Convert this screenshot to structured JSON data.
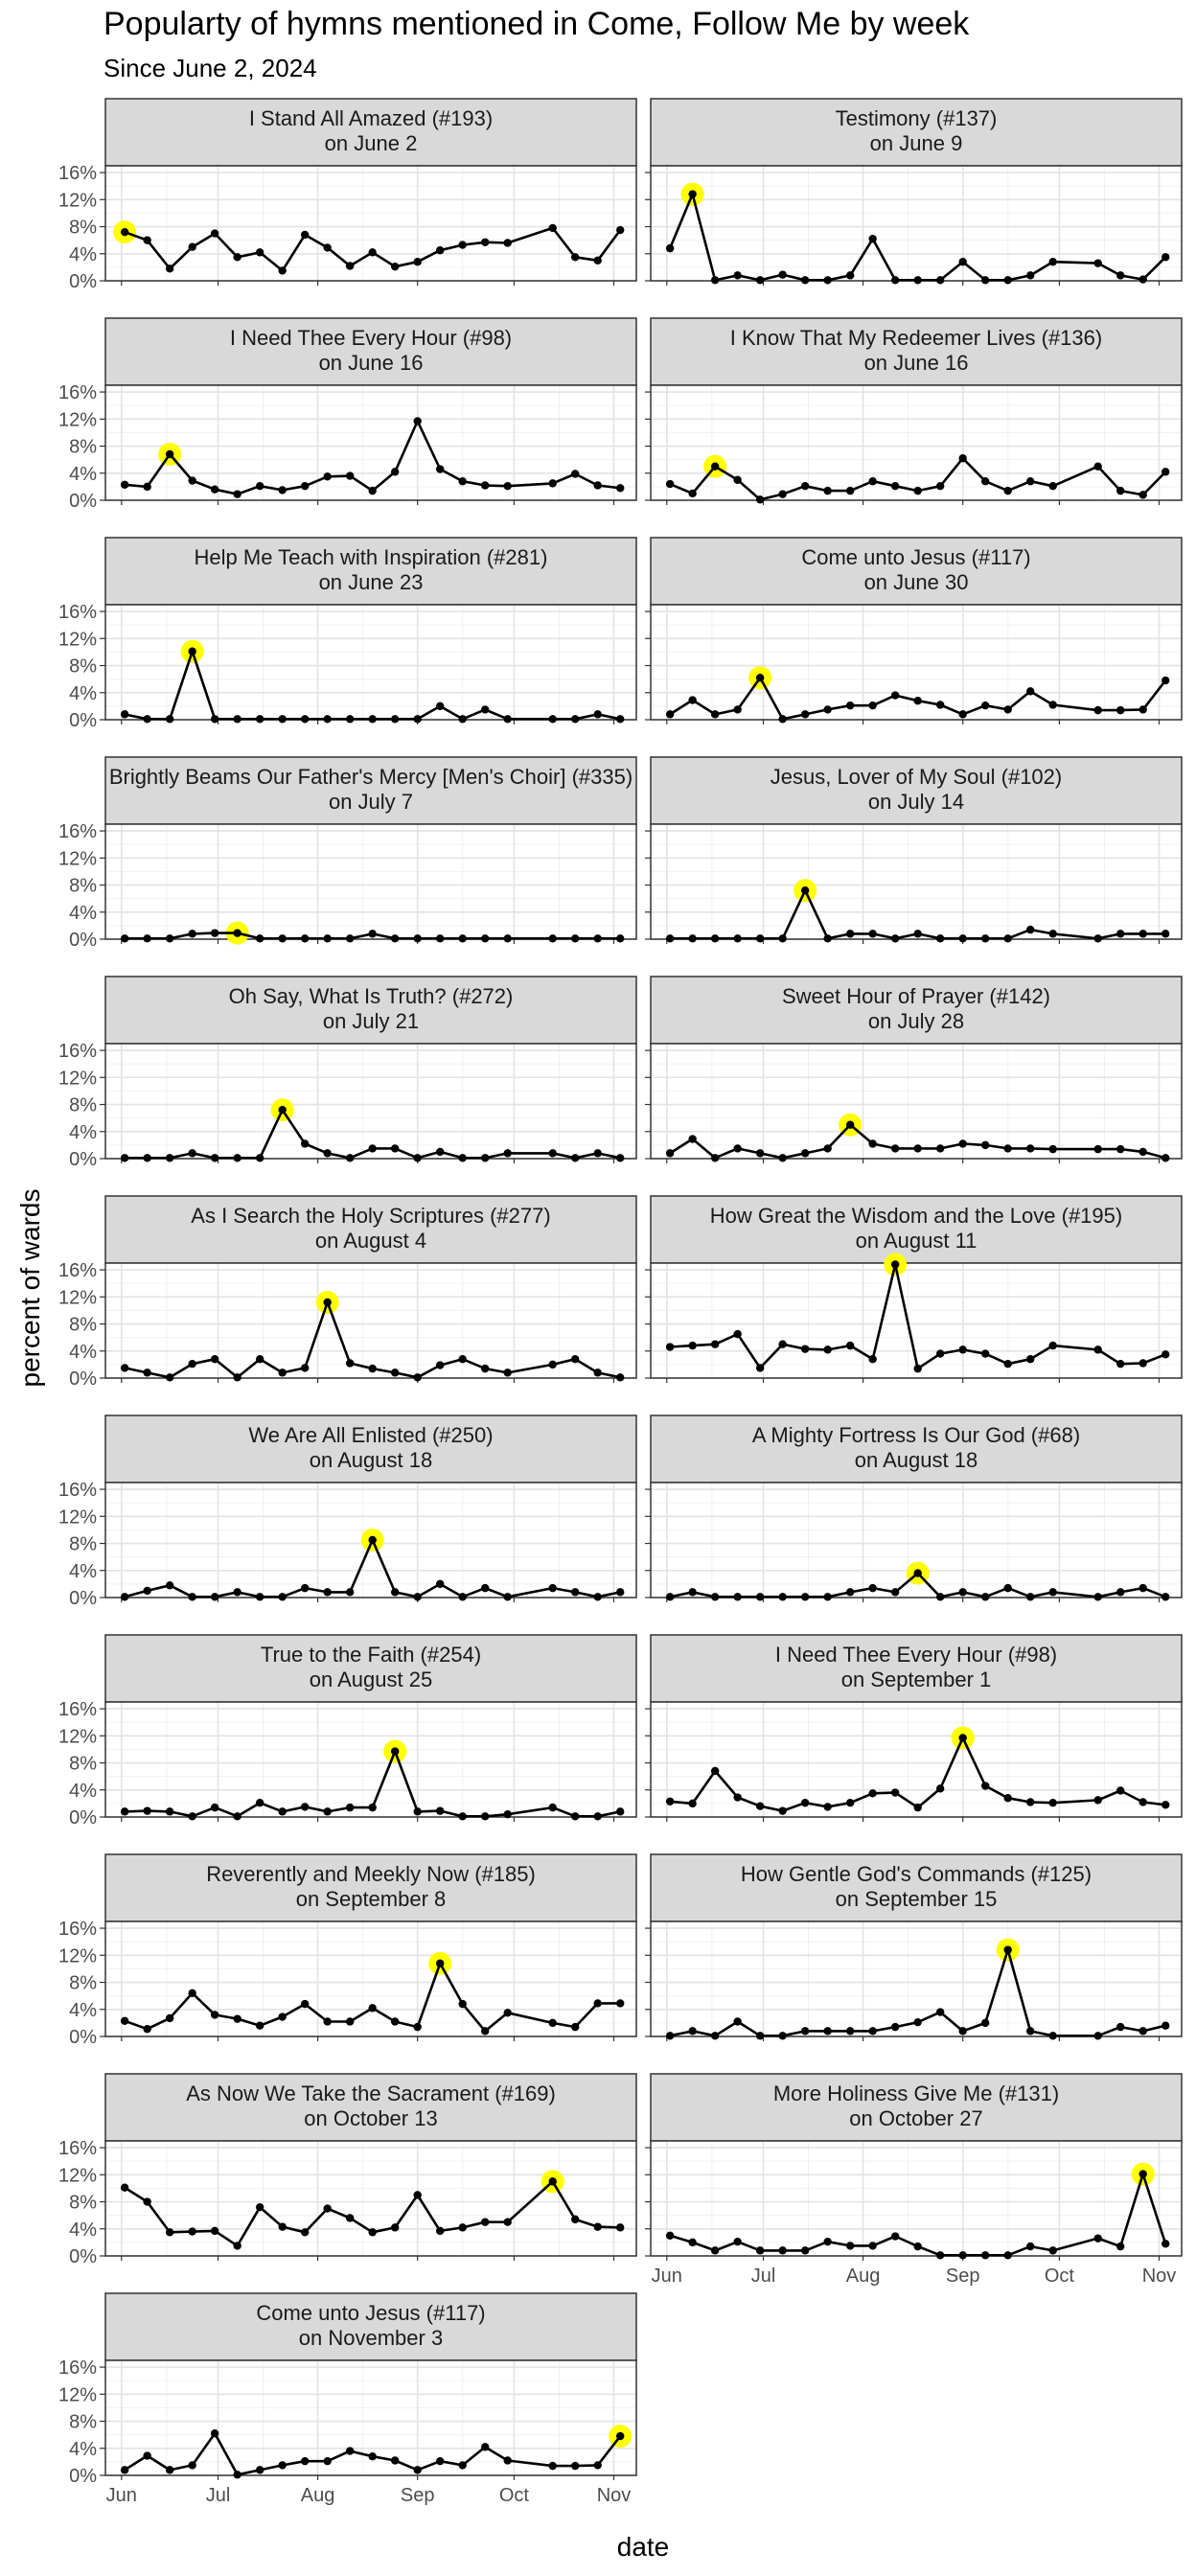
{
  "title": "Popularty of hymns mentioned in Come, Follow Me by week",
  "subtitle": "Since June 2, 2024",
  "chart_data": {
    "type": "line",
    "title": "Popularty of hymns mentioned in Come, Follow Me by week",
    "subtitle": "Since June 2, 2024",
    "xlabel": "date",
    "ylabel": "percent of wards",
    "y_ticks": [
      "0%",
      "4%",
      "8%",
      "12%",
      "16%"
    ],
    "ylim": [
      0,
      17
    ],
    "x_ticks": [
      "Jun",
      "Jul",
      "Aug",
      "Sep",
      "Oct",
      "Nov"
    ],
    "x_tick_dates": [
      "2024-06-01",
      "2024-07-01",
      "2024-08-01",
      "2024-09-01",
      "2024-10-01",
      "2024-11-01"
    ],
    "xlim": [
      "2024-05-27",
      "2024-11-08"
    ],
    "grid": true,
    "highlight_color": "#ffff00",
    "line_color": "#000000",
    "strip_fill": "#d9d9d9",
    "dates": [
      "2024-06-02",
      "2024-06-09",
      "2024-06-16",
      "2024-06-23",
      "2024-06-30",
      "2024-07-07",
      "2024-07-14",
      "2024-07-21",
      "2024-07-28",
      "2024-08-04",
      "2024-08-11",
      "2024-08-18",
      "2024-08-25",
      "2024-09-01",
      "2024-09-08",
      "2024-09-15",
      "2024-09-22",
      "2024-09-29",
      "2024-10-13",
      "2024-10-20",
      "2024-10-27",
      "2024-11-03"
    ],
    "panels": [
      {
        "label": "I Stand All Amazed (#193)",
        "sublabel": "on June 2",
        "highlight": "2024-06-02",
        "values": [
          7.2,
          6.0,
          1.8,
          5.0,
          7.0,
          3.5,
          4.2,
          1.5,
          6.8,
          4.9,
          2.2,
          4.2,
          2.1,
          2.8,
          4.5,
          5.3,
          5.7,
          5.6,
          7.8,
          3.5,
          3.0,
          7.5
        ]
      },
      {
        "label": "Testimony (#137)",
        "sublabel": "on June 9",
        "highlight": "2024-06-09",
        "values": [
          4.8,
          12.8,
          0.1,
          0.8,
          0.1,
          0.9,
          0.1,
          0.1,
          0.8,
          6.2,
          0.1,
          0.1,
          0.1,
          2.8,
          0.1,
          0.1,
          0.8,
          2.8,
          2.6,
          0.8,
          0.2,
          3.5
        ]
      },
      {
        "label": "I Need Thee Every Hour (#98)",
        "sublabel": "on June 16",
        "highlight": "2024-06-16",
        "values": [
          2.3,
          2.0,
          6.8,
          2.9,
          1.6,
          0.9,
          2.1,
          1.5,
          2.1,
          3.5,
          3.6,
          1.4,
          4.2,
          11.7,
          4.6,
          2.8,
          2.2,
          2.1,
          2.5,
          3.9,
          2.2,
          1.8
        ]
      },
      {
        "label": "I Know That My Redeemer Lives (#136)",
        "sublabel": "on June 16",
        "highlight": "2024-06-16",
        "values": [
          2.4,
          1.0,
          5.0,
          3.0,
          0.1,
          0.9,
          2.1,
          1.4,
          1.4,
          2.8,
          2.1,
          1.4,
          2.1,
          6.2,
          2.8,
          1.4,
          2.8,
          2.1,
          5.0,
          1.4,
          0.8,
          4.2
        ]
      },
      {
        "label": "Help Me Teach with Inspiration (#281)",
        "sublabel": "on June 23",
        "highlight": "2024-06-23",
        "values": [
          0.8,
          0.1,
          0.1,
          10.1,
          0.1,
          0.1,
          0.1,
          0.1,
          0.1,
          0.1,
          0.1,
          0.1,
          0.1,
          0.1,
          2.0,
          0.1,
          1.5,
          0.1,
          0.1,
          0.1,
          0.8,
          0.1
        ]
      },
      {
        "label": "Come unto Jesus (#117)",
        "sublabel": "on June 30",
        "highlight": "2024-06-30",
        "values": [
          0.8,
          2.9,
          0.8,
          1.5,
          6.2,
          0.1,
          0.8,
          1.5,
          2.1,
          2.1,
          3.6,
          2.8,
          2.2,
          0.8,
          2.1,
          1.5,
          4.2,
          2.2,
          1.4,
          1.4,
          1.5,
          5.8
        ]
      },
      {
        "label": "Brightly Beams Our Father's Mercy [Men's Choir] (#335)",
        "sublabel": "on July 7",
        "highlight": "2024-07-07",
        "values": [
          0.1,
          0.1,
          0.1,
          0.8,
          0.9,
          0.9,
          0.1,
          0.1,
          0.1,
          0.1,
          0.1,
          0.8,
          0.1,
          0.1,
          0.1,
          0.1,
          0.1,
          0.1,
          0.1,
          0.1,
          0.1,
          0.1
        ]
      },
      {
        "label": "Jesus, Lover of My Soul (#102)",
        "sublabel": "on July 14",
        "highlight": "2024-07-14",
        "values": [
          0.1,
          0.1,
          0.1,
          0.1,
          0.1,
          0.1,
          7.2,
          0.1,
          0.8,
          0.8,
          0.1,
          0.8,
          0.1,
          0.1,
          0.1,
          0.1,
          1.4,
          0.8,
          0.1,
          0.8,
          0.8,
          0.8
        ]
      },
      {
        "label": "Oh Say, What Is Truth? (#272)",
        "sublabel": "on July 21",
        "highlight": "2024-07-21",
        "values": [
          0.1,
          0.1,
          0.1,
          0.8,
          0.1,
          0.1,
          0.1,
          7.2,
          2.2,
          0.8,
          0.1,
          1.5,
          1.5,
          0.1,
          1.0,
          0.1,
          0.1,
          0.8,
          0.8,
          0.1,
          0.8,
          0.1
        ]
      },
      {
        "label": "Sweet Hour of Prayer (#142)",
        "sublabel": "on July 28",
        "highlight": "2024-07-28",
        "values": [
          0.8,
          2.9,
          0.1,
          1.5,
          0.8,
          0.1,
          0.8,
          1.5,
          5.0,
          2.2,
          1.5,
          1.5,
          1.5,
          2.2,
          2.0,
          1.5,
          1.5,
          1.4,
          1.4,
          1.4,
          1.0,
          0.1
        ]
      },
      {
        "label": "As I Search the Holy Scriptures (#277)",
        "sublabel": "on August 4",
        "highlight": "2024-08-04",
        "values": [
          1.5,
          0.8,
          0.1,
          2.1,
          2.8,
          0.1,
          2.8,
          0.8,
          1.5,
          11.2,
          2.2,
          1.4,
          0.8,
          0.1,
          1.9,
          2.8,
          1.4,
          0.8,
          2.0,
          2.8,
          0.8,
          0.1
        ]
      },
      {
        "label": "How Great the Wisdom and the Love (#195)",
        "sublabel": "on August 11",
        "highlight": "2024-08-11",
        "values": [
          4.6,
          4.8,
          5.0,
          6.5,
          1.5,
          5.0,
          4.3,
          4.2,
          4.8,
          2.8,
          16.8,
          1.4,
          3.6,
          4.2,
          3.6,
          2.1,
          2.8,
          4.8,
          4.2,
          2.1,
          2.2,
          3.5
        ]
      },
      {
        "label": "We Are All Enlisted (#250)",
        "sublabel": "on August 18",
        "highlight": "2024-08-18",
        "values": [
          0.1,
          1.0,
          1.8,
          0.1,
          0.1,
          0.8,
          0.1,
          0.1,
          1.4,
          0.8,
          0.8,
          8.5,
          0.8,
          0.1,
          2.0,
          0.1,
          1.4,
          0.1,
          1.4,
          0.8,
          0.1,
          0.8
        ]
      },
      {
        "label": "A Mighty Fortress Is Our God (#68)",
        "sublabel": "on August 18",
        "highlight": "2024-08-18",
        "values": [
          0.1,
          0.8,
          0.1,
          0.1,
          0.1,
          0.1,
          0.1,
          0.1,
          0.8,
          1.4,
          0.8,
          3.6,
          0.1,
          0.8,
          0.1,
          1.4,
          0.1,
          0.8,
          0.1,
          0.8,
          1.4,
          0.1
        ]
      },
      {
        "label": "True to the Faith (#254)",
        "sublabel": "on August 25",
        "highlight": "2024-08-25",
        "values": [
          0.8,
          0.9,
          0.8,
          0.1,
          1.4,
          0.1,
          2.1,
          0.8,
          1.5,
          0.8,
          1.4,
          1.4,
          9.7,
          0.8,
          0.9,
          0.1,
          0.1,
          0.4,
          1.4,
          0.1,
          0.1,
          0.8
        ]
      },
      {
        "label": "I Need Thee Every Hour (#98)",
        "sublabel": "on September 1",
        "highlight": "2024-09-01",
        "values": [
          2.3,
          2.0,
          6.8,
          2.9,
          1.6,
          0.9,
          2.1,
          1.5,
          2.1,
          3.5,
          3.6,
          1.4,
          4.2,
          11.7,
          4.6,
          2.8,
          2.2,
          2.1,
          2.5,
          3.9,
          2.2,
          1.8
        ]
      },
      {
        "label": "Reverently and Meekly Now (#185)",
        "sublabel": "on September 8",
        "highlight": "2024-09-08",
        "values": [
          2.3,
          1.1,
          2.7,
          6.4,
          3.2,
          2.6,
          1.6,
          2.9,
          4.8,
          2.2,
          2.2,
          4.2,
          2.2,
          1.4,
          10.8,
          4.8,
          0.8,
          3.5,
          2.0,
          1.4,
          4.9,
          4.9
        ]
      },
      {
        "label": "How Gentle God's Commands (#125)",
        "sublabel": "on September 15",
        "highlight": "2024-09-15",
        "values": [
          0.1,
          0.8,
          0.1,
          2.2,
          0.1,
          0.1,
          0.8,
          0.8,
          0.8,
          0.8,
          1.4,
          2.1,
          3.6,
          0.8,
          2.0,
          12.8,
          0.8,
          0.1,
          0.1,
          1.4,
          0.8,
          1.6
        ]
      },
      {
        "label": "As Now We Take the Sacrament (#169)",
        "sublabel": "on October 13",
        "highlight": "2024-10-13",
        "values": [
          10.1,
          8.0,
          3.5,
          3.6,
          3.7,
          1.5,
          7.2,
          4.3,
          3.5,
          7.0,
          5.6,
          3.5,
          4.2,
          9.0,
          3.7,
          4.2,
          5.0,
          5.0,
          11.0,
          5.4,
          4.3,
          4.2
        ]
      },
      {
        "label": "More Holiness Give Me (#131)",
        "sublabel": "on October 27",
        "highlight": "2024-10-27",
        "values": [
          3.0,
          2.0,
          0.8,
          2.1,
          0.8,
          0.8,
          0.8,
          2.1,
          1.5,
          1.5,
          2.9,
          1.4,
          0.1,
          0.1,
          0.1,
          0.1,
          1.4,
          0.8,
          2.6,
          1.4,
          12.1,
          1.8
        ]
      },
      {
        "label": "Come unto Jesus (#117)",
        "sublabel": "on November 3",
        "highlight": "2024-11-03",
        "values": [
          0.8,
          2.9,
          0.8,
          1.5,
          6.2,
          0.1,
          0.8,
          1.5,
          2.1,
          2.1,
          3.6,
          2.8,
          2.2,
          0.8,
          2.1,
          1.5,
          4.2,
          2.2,
          1.4,
          1.4,
          1.5,
          5.8
        ]
      }
    ]
  }
}
